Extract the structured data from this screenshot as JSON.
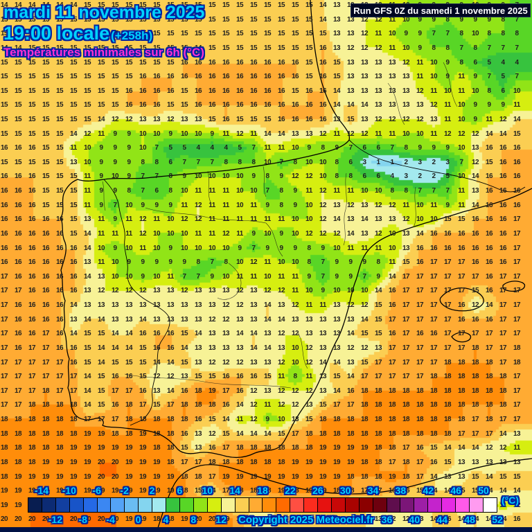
{
  "header": {
    "date_line": "mardi 11 novembre 2025",
    "time_line": "19:00 locale",
    "time_offset": "(+258h)",
    "subtitle": "Températures minimales sur 6h (°C)",
    "run_info": "Run GFS 0Z du samedi 1 novembre 2025"
  },
  "footer": {
    "copyright": "Copyright 2025 Meteociel.fr"
  },
  "colors": {
    "title_cyan": "#00d2ff",
    "subtitle_magenta": "#ff2fd0",
    "outline_navy": "#0023a0",
    "run_bar_bg": "#000722",
    "run_bar_text": "#ffffff",
    "number_color": "#1f1f1f",
    "bottom_bar": "#001245"
  },
  "legend": {
    "unit": "(°C)",
    "value_min": -16,
    "value_max": 52,
    "step": 2,
    "ticks_top": [
      -14,
      -10,
      -6,
      -2,
      2,
      6,
      10,
      14,
      18,
      22,
      26,
      30,
      34,
      38,
      42,
      46,
      50
    ],
    "ticks_bottom": [
      -12,
      -8,
      -4,
      0,
      4,
      8,
      12,
      16,
      20,
      24,
      28,
      32,
      36,
      40,
      44,
      48,
      52
    ],
    "cell_colors": [
      "#081d50",
      "#0c2b74",
      "#123fa0",
      "#1854c8",
      "#2569e6",
      "#3b87f2",
      "#54a3f6",
      "#6abdf2",
      "#84d5ef",
      "#a3e9ee",
      "#37c33e",
      "#58d626",
      "#91e417",
      "#d6ee10",
      "#f7f296",
      "#fbce52",
      "#ffab33",
      "#ff8d0a",
      "#ff6b00",
      "#ff4f42",
      "#fb2c1e",
      "#e61210",
      "#c80808",
      "#a90301",
      "#8b0000",
      "#6e000e",
      "#5f0e4d",
      "#7b1678",
      "#9d1fa6",
      "#c423cc",
      "#e52ae3",
      "#ff5ae9",
      "#ff9bf0",
      "#ffffff"
    ]
  },
  "temperature_grid": {
    "cols": 38,
    "rows": [
      "14 14 14 14 14 14 15 15 15 15 15 15 15 15 15 15 15 15 15 15 15 15 15 14 13 12 12 12 11 10 9 9 9 9 10 9 9 7",
      "15 15 15 15 15 15 15 15 15 15 15 15 15 15 15 15 15 15 15 15 15 15 15 14 13 13 12 12 11 10 9 9 8 9 9 9 8 7",
      "15 15 15 15 15 15 15 15 15 15 15 15 15 15 15 15 15 15 15 15 15 15 15 15 13 13 12 11 10 9 9 7 7 8 10 8 8 8",
      "14 14 15 15 15 15 15 15 15 15 15 15 15 15 14 15 15 15 15 15 15 15 15 16 13 12 12 12 11 10 9 8 8 7 8 7 7 7",
      "15 15 15 15 15 15 15 15 15 15 15 15 15 16 16 16 16 16 16 16 16 16 15 16 15 13 13 13 13 12 11 10 9 8 6 5 4 4",
      "15 15 15 15 15 15 15 15 15 15 16 16 16 16 16 16 16 16 16 16 16 16 15 16 15 13 13 13 13 13 11 10 9 11 9 7 5 7",
      "15 15 15 15 15 15 15 15 15 16 16 16 16 15 16 16 16 16 16 16 16 15 16 16 14 13 13 13 13 13 12 11 10 11 10 8 6 10",
      "15 15 15 15 15 15 15 15 15 16 16 16 15 15 16 16 16 16 16 16 16 16 16 16 14 14 14 13 13 13 13 12 11 10 9 9 9 11",
      "15 15 15 15 15 15 15 14 12 12 13 13 12 13 13 15 16 15 15 15 16 16 16 16 13 15 13 12 12 12 12 13 11 10 9 11 12 14",
      "15 15 15 15 15 14 12 11 9 9 10 10 9 10 10 9 11 12 11 14 14 13 13 12 11 12 12 11 11 10 10 11 12 12 12 14 14 15",
      "16 16 16 15 15 11 10 9 9 9 10 7 5 5 4 4 4 5 7 11 11 10 9 8 9 7 6 6 7 8 9 9 9 10 13 16 16 16",
      "15 15 15 15 15 13 10 9 9 9 8 8 6 7 7 7 8 8 8 10 7 8 10 10 8 6 3 1 1 2 3 2 3 7 12 15 16 16",
      "16 16 16 15 15 15 11 9 10 9 7 7 8 9 10 10 10 10 9 8 9 12 12 10 8 8 6 6 4 3 2 2 5 10 14 16 16 16",
      "16 16 16 15 15 15 11 9 9 8 7 6 8 10 11 11 11 10 10 7 8 9 11 12 11 11 10 10 8 8 7 7 7 11 13 16 16 16",
      "16 16 16 15 15 15 11 9 7 10 9 9 9 11 12 11 11 10 11 9 8 9 10 12 13 12 13 12 12 11 10 11 9 11 14 16 16 16",
      "16 16 16 16 16 15 13 11 9 11 12 11 10 12 12 11 11 11 11 11 11 10 10 12 14 13 14 13 13 12 10 10 15 15 16 16 16 17",
      "16 16 16 16 16 15 14 11 11 11 12 10 10 10 11 11 12 11 9 10 9 10 12 12 12 14 13 12 10 13 14 16 16 16 16 16 16 17",
      "16 16 16 16 16 16 14 10 9 10 11 10 9 10 10 10 10 9 7 9 9 9 8 9 10 11 11 11 10 13 16 16 16 16 16 16 16 17",
      "16 16 16 16 16 16 13 11 10 9 9 9 9 9 8 7 8 10 12 11 10 10 8 7 9 9 9 8 11 15 16 17 17 17 16 16 16 17",
      "17 16 16 16 16 16 14 13 10 10 9 10 11 7 7 9 10 11 11 10 11 11 9 7 9 9 7 9 14 17 17 17 17 17 17 16 17 17",
      "17 17 16 16 16 16 13 12 12 12 12 13 13 12 13 13 13 12 13 12 12 11 10 9 10 10 10 14 16 17 17 17 17 17 15 16 17 17",
      "17 16 16 16 16 14 13 13 13 13 13 13 13 13 13 13 12 12 13 14 13 12 11 11 13 12 12 15 16 17 17 17 17 16 12 14 17 17",
      "17 16 16 16 16 13 14 14 13 13 14 13 13 13 13 12 12 13 13 14 14 13 13 13 13 13 14 15 17 17 17 17 17 16 16 16 17 17",
      "17 16 16 17 16 14 15 15 14 14 16 16 16 15 14 13 13 14 14 13 12 12 13 13 13 14 15 15 16 17 16 16 17 17 17 17 17 17",
      "17 16 17 17 16 16 15 14 14 14 15 16 16 14 13 13 13 13 14 14 13 10 12 13 13 12 12 13 17 17 17 17 17 17 18 17 17 18",
      "17 17 17 17 17 16 15 14 15 15 15 14 14 15 13 12 12 12 13 13 12 10 12 14 14 13 15 17 17 17 17 17 18 18 18 18 17 18",
      "17 17 17 17 17 17 14 15 16 16 15 12 12 13 15 15 16 16 16 15 11 8 11 13 15 14 17 17 17 17 17 18 18 18 18 18 18 17",
      "17 17 17 18 17 17 14 15 17 17 16 13 14 16 18 19 17 16 12 13 12 12 12 13 14 16 18 18 18 18 18 18 18 18 18 18 18 17",
      "17 17 18 18 18 18 14 15 16 18 17 15 17 18 18 18 16 14 12 11 12 12 13 15 17 17 18 18 18 18 18 18 18 18 18 18 18 17",
      "18 18 18 18 18 18 17 17 17 18 18 18 18 18 16 15 14 11 12 9 10 13 15 18 18 18 18 18 18 18 18 18 18 18 17 18 17 17",
      "18 18 18 18 18 18 19 19 18 18 19 18 18 16 13 12 15 14 14 14 15 17 18 18 18 18 18 18 18 18 18 18 18 17 17 17 14 13",
      "18 18 18 18 18 19 19 19 19 19 19 18 18 15 13 16 17 18 18 18 18 18 18 19 19 19 19 18 18 17 16 15 14 14 14 12 12 11",
      "18 18 18 19 19 19 19 20 20 19 19 19 18 17 17 18 18 18 18 18 18 19 19 19 19 19 18 18 17 18 17 16 15 13 13 13 13 13",
      "18 19 19 19 19 19 19 20 20 19 19 19 19 18 18 17 19 19 19 19 19 19 19 19 19 18 18 18 19 18 17 14 13 13 15 14 15 15",
      "19 19 19 19 19 19 19 19 19 19 19 19 19 18 15 14 17 18 18 18 19 18 19 19 18 18 17 17 16 16 15 14 14 15 15 14 14 14",
      "19 19 20 20 20 20 20 20 20 19 19 19 18 18 18 17 13 13 13 13 15 16 14 15 15 13 14 14 14 14 15 14 14 13 14 13 11 12",
      "20 20 20 20 20 20 20 20 20 19 19 18 18 19 20 20 19 17 14 14 14 14 15 15 15 15 14 13 12 12 13 14 16 14 14 14 14 16"
    ]
  }
}
